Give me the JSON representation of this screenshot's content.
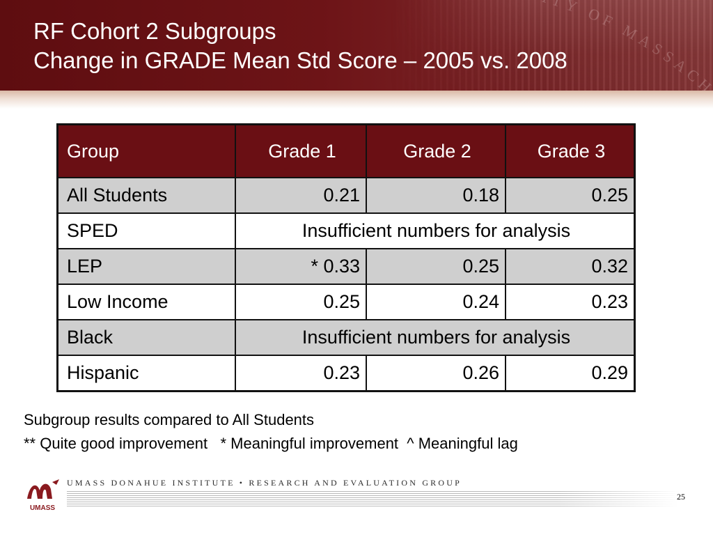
{
  "slide": {
    "title_line1": "RF Cohort 2 Subgroups",
    "title_line2": "Change in GRADE Mean Std Score – 2005 vs. 2008",
    "header_watermark": "UNIVERSITY OF MASSACHUSETTS"
  },
  "table": {
    "headers": [
      "Group",
      "Grade 1",
      "Grade 2",
      "Grade 3"
    ],
    "rows": [
      {
        "group": "All Students",
        "g1": "0.21",
        "g2": "0.18",
        "g3": "0.25"
      },
      {
        "group": "SPED",
        "merged": "Insufficient numbers for analysis"
      },
      {
        "group": "LEP",
        "g1": "* 0.33",
        "g2": "0.25",
        "g3": "0.32"
      },
      {
        "group": "Low Income",
        "g1": "0.25",
        "g2": "0.24",
        "g3": "0.23"
      },
      {
        "group": "Black",
        "merged": "Insufficient numbers for analysis"
      },
      {
        "group": "Hispanic",
        "g1": "0.23",
        "g2": "0.26",
        "g3": "0.29"
      }
    ]
  },
  "notes": {
    "line1": "Subgroup results compared to All Students",
    "line2": "** Quite good improvement   * Meaningful improvement  ^ Meaningful lag"
  },
  "footer": {
    "logo_text": "UMASS",
    "org_text": "UMASS DONAHUE INSTITUTE  •  RESEARCH AND EVALUATION GROUP",
    "page_number": "25"
  },
  "colors": {
    "header_maroon": "#6a0f14",
    "shaded_row": "#cfcfcf"
  }
}
